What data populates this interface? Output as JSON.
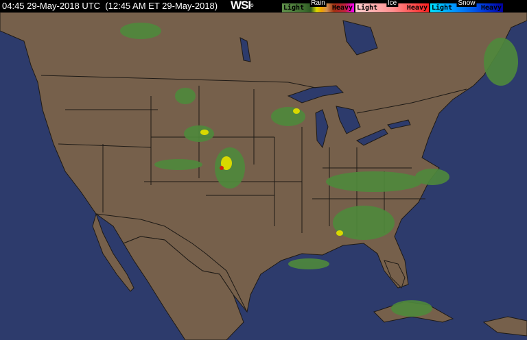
{
  "header": {
    "timestamp": "04:45 29-May-2018 UTC  (12:45 AM ET 29-May-2018)",
    "logo": "WSI"
  },
  "legend": {
    "rain": {
      "title": "Rain",
      "light": "Light",
      "heavy": "Heavy"
    },
    "ice": {
      "title": "Ice",
      "light": "Light",
      "heavy": "Heavy"
    },
    "snow": {
      "title": "Snow",
      "light": "Light",
      "heavy": "Heavy"
    }
  },
  "colors": {
    "ocean": "#2d3b6c",
    "land": "#76604b",
    "border": "#1e1a16",
    "rain_light": "#4f8a3c",
    "rain_moderate": "#d8d800",
    "rain_heavy": "#d02010"
  }
}
